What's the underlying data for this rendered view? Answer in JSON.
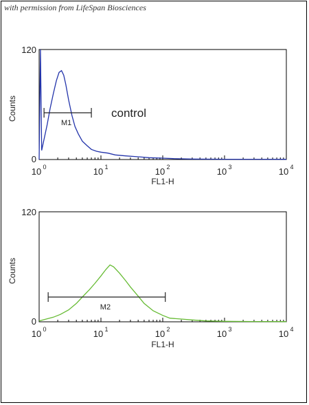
{
  "credit": "with permission from LifeSpan Biosciences",
  "chart_data": [
    {
      "type": "histogram",
      "xlabel": "FL1-H",
      "ylabel": "Counts",
      "x_scale": "log",
      "xlim": [
        1,
        10000
      ],
      "ylim": [
        0,
        120
      ],
      "x_ticks": [
        {
          "base": "10",
          "exp": "0"
        },
        {
          "base": "10",
          "exp": "1"
        },
        {
          "base": "10",
          "exp": "2"
        },
        {
          "base": "10",
          "exp": "3"
        },
        {
          "base": "10",
          "exp": "4"
        }
      ],
      "y_ticks": [
        "0",
        "120"
      ],
      "color": "#2233aa",
      "annotation": "control",
      "gate": {
        "label": "M1",
        "x_start": 1.2,
        "x_end": 7
      },
      "series": [
        {
          "x": [
            1.0,
            1.05,
            1.1,
            1.2,
            1.35,
            1.5,
            1.7,
            1.9,
            2.1,
            2.3,
            2.5,
            2.7,
            3.0,
            3.4,
            3.8,
            4.3,
            5.0,
            6.0,
            7.0,
            8.5,
            10,
            13,
            17,
            25,
            40,
            60,
            100,
            150,
            300,
            1000,
            10000
          ],
          "y": [
            0,
            120,
            10,
            22,
            38,
            55,
            72,
            86,
            95,
            97,
            92,
            82,
            65,
            48,
            36,
            28,
            20,
            15,
            11,
            9,
            8,
            7,
            5,
            4,
            3,
            2,
            1.5,
            1,
            0.5,
            0.3,
            0.2
          ]
        }
      ]
    },
    {
      "type": "histogram",
      "xlabel": "FL1-H",
      "ylabel": "Counts",
      "x_scale": "log",
      "xlim": [
        1,
        10000
      ],
      "ylim": [
        0,
        120
      ],
      "x_ticks": [
        {
          "base": "10",
          "exp": "0"
        },
        {
          "base": "10",
          "exp": "1"
        },
        {
          "base": "10",
          "exp": "2"
        },
        {
          "base": "10",
          "exp": "3"
        },
        {
          "base": "10",
          "exp": "4"
        }
      ],
      "y_ticks": [
        "0",
        "120"
      ],
      "color": "#66bb33",
      "gate": {
        "label": "M2",
        "x_start": 1.4,
        "x_end": 110
      },
      "series": [
        {
          "x": [
            1.0,
            1.3,
            1.7,
            2.2,
            3,
            4,
            5,
            6.5,
            8,
            10,
            12,
            14,
            16,
            20,
            25,
            30,
            40,
            50,
            70,
            100,
            130,
            200,
            300,
            500,
            1000,
            3000,
            10000
          ],
          "y": [
            1,
            3,
            5,
            8,
            13,
            20,
            27,
            35,
            42,
            50,
            57,
            62,
            60,
            53,
            45,
            38,
            28,
            20,
            12,
            7,
            4,
            3,
            2,
            1,
            0.5,
            0.3,
            0.2
          ]
        }
      ]
    }
  ]
}
